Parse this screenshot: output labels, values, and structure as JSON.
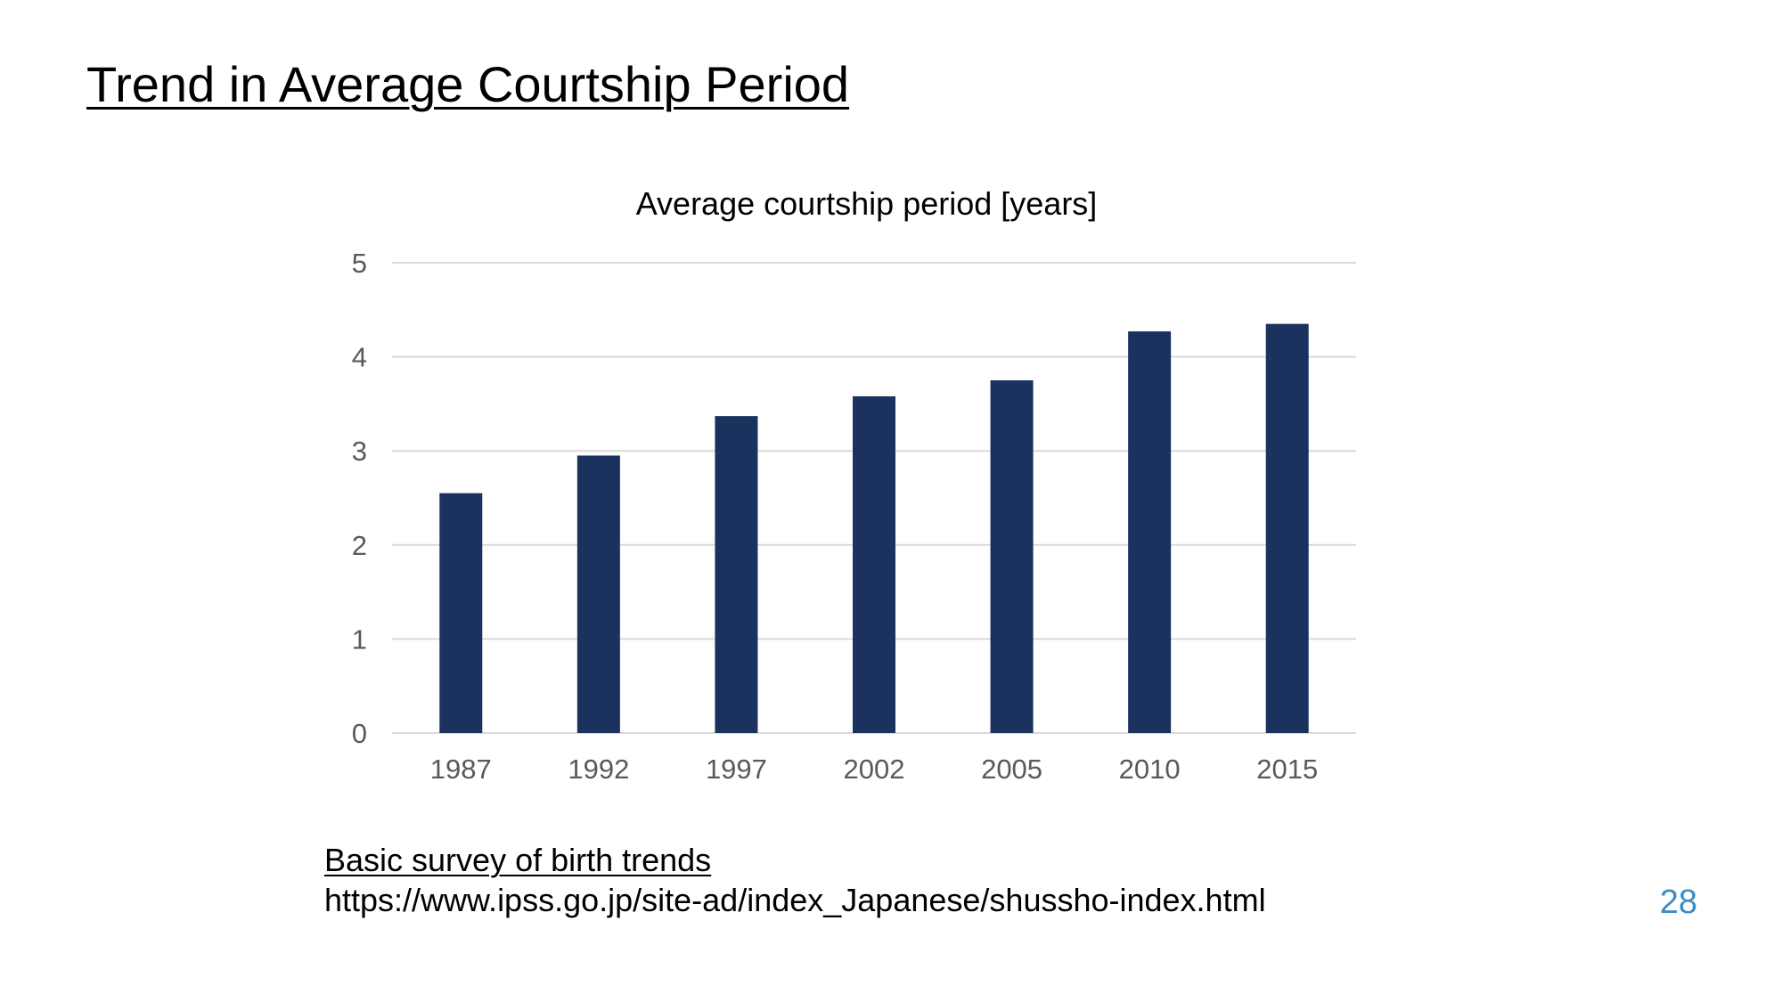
{
  "slide": {
    "title": "Trend in Average Courtship Period",
    "source_title": "Basic survey of birth trends",
    "source_url": "https://www.ipss.go.jp/site-ad/index_Japanese/shussho-index.html",
    "page_number": "28"
  },
  "colors": {
    "bar": "#1B315E",
    "grid": "#D9D9D9",
    "tick_label": "#595959",
    "page_number": "#3A8DC5"
  },
  "chart_data": {
    "type": "bar",
    "title": "Average courtship period [years]",
    "xlabel": "",
    "ylabel": "",
    "categories": [
      "1987",
      "1992",
      "1997",
      "2002",
      "2005",
      "2010",
      "2015"
    ],
    "values": [
      2.55,
      2.95,
      3.37,
      3.58,
      3.75,
      4.27,
      4.35
    ],
    "ylim": [
      0,
      5
    ],
    "yticks": [
      0,
      1,
      2,
      3,
      4,
      5
    ],
    "grid": true,
    "legend": "none"
  }
}
